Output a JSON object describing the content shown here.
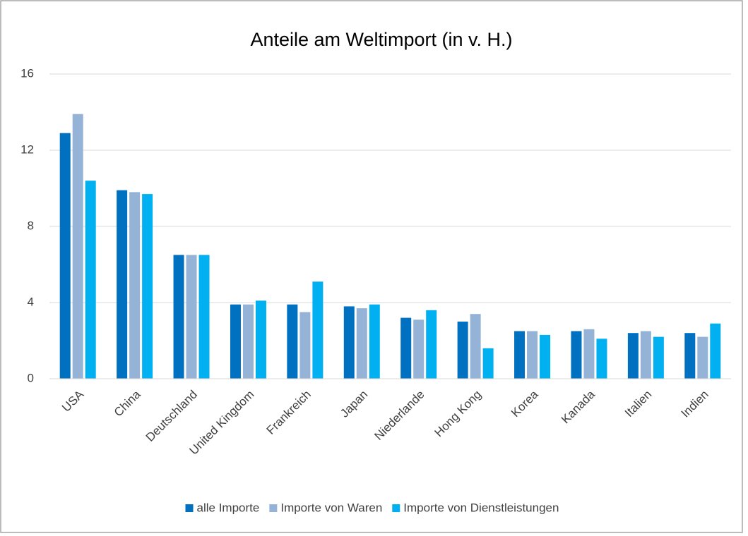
{
  "chart_data": {
    "type": "bar",
    "title": "Anteile am Weltimport (in v. H.)",
    "categories": [
      "USA",
      "China",
      "Deutschland",
      "United Kingdom",
      "Frankreich",
      "Japan",
      "Niederlande",
      "Hong Kong",
      "Korea",
      "Kanada",
      "Italien",
      "Indien"
    ],
    "series": [
      {
        "name": "alle Importe",
        "color": "#0070c0",
        "values": [
          12.9,
          9.9,
          6.5,
          3.9,
          3.9,
          3.8,
          3.2,
          3.0,
          2.5,
          2.5,
          2.4,
          2.4
        ]
      },
      {
        "name": "Importe von Waren",
        "color": "#95b3d7",
        "values": [
          13.9,
          9.8,
          6.5,
          3.9,
          3.5,
          3.7,
          3.1,
          3.4,
          2.5,
          2.6,
          2.5,
          2.2
        ]
      },
      {
        "name": "Importe von Dienstleistungen",
        "color": "#00b0f0",
        "values": [
          10.4,
          9.7,
          6.5,
          4.1,
          5.1,
          3.9,
          3.6,
          1.6,
          2.3,
          2.1,
          2.2,
          2.9
        ]
      }
    ],
    "ylim": [
      0,
      16
    ],
    "yticks": [
      0,
      4,
      8,
      12,
      16
    ],
    "grid": true,
    "legend": "bottom"
  }
}
